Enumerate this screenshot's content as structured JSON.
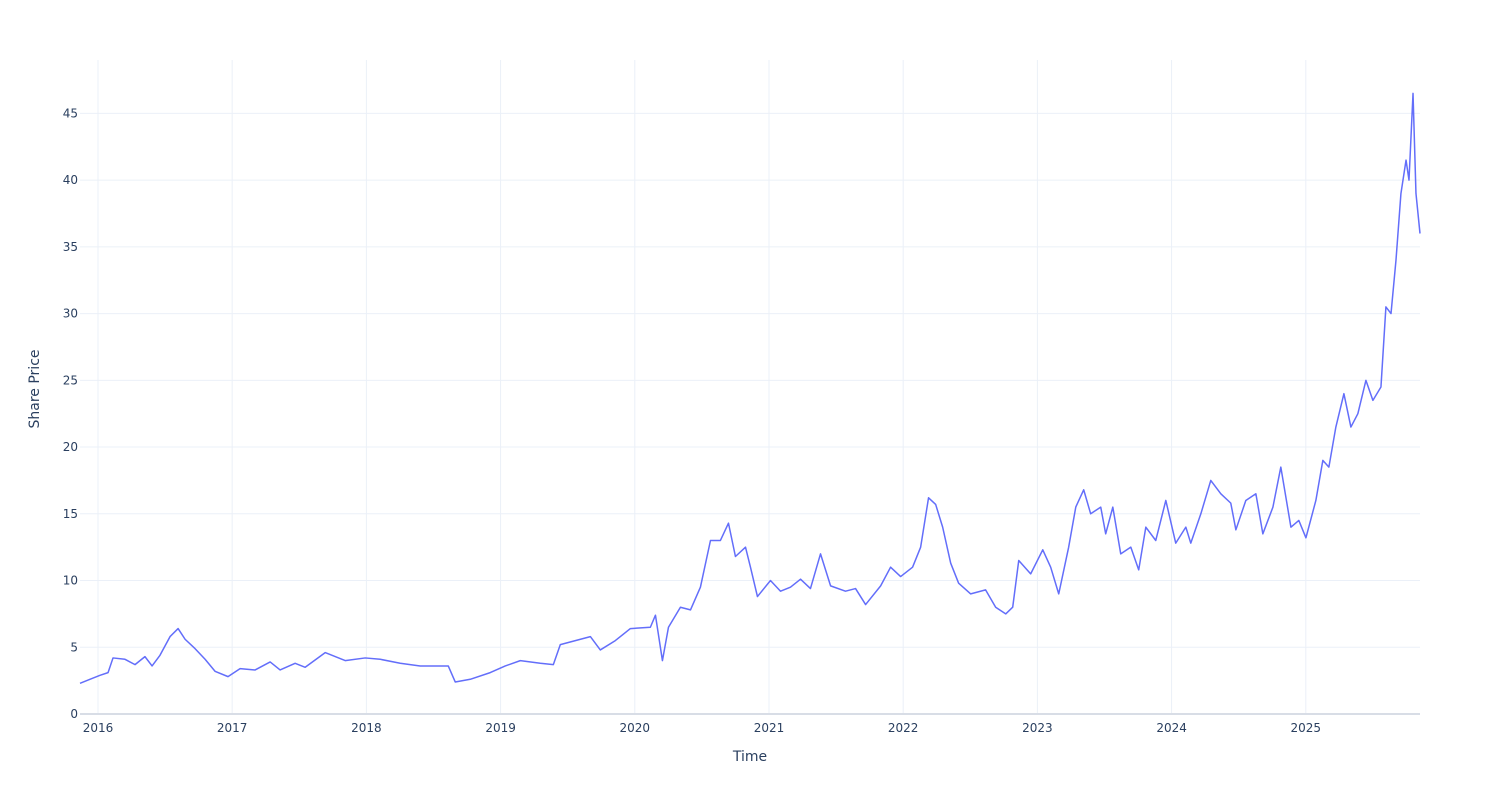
{
  "chart_data": {
    "type": "line",
    "x_label": "Time",
    "y_label": "Share Price",
    "xlim": [
      2015.866,
      2025.851
    ],
    "xticks": [
      2016,
      2017,
      2018,
      2019,
      2020,
      2021,
      2022,
      2023,
      2024,
      2025
    ],
    "ylim": [
      0,
      49
    ],
    "yticks": [
      0,
      5,
      10,
      15,
      20,
      25,
      30,
      35,
      40,
      45
    ],
    "grid": true,
    "series": [
      {
        "color": "#636efa",
        "x": [
          2015.866,
          2015.94,
          2016.015,
          2016.075,
          2016.112,
          2016.201,
          2016.276,
          2016.35,
          2016.403,
          2016.462,
          2016.537,
          2016.597,
          2016.649,
          2016.723,
          2016.798,
          2016.872,
          2016.969,
          2017.059,
          2017.171,
          2017.283,
          2017.357,
          2017.469,
          2017.544,
          2017.693,
          2017.842,
          2017.991,
          2018.103,
          2018.252,
          2018.401,
          2018.61,
          2018.662,
          2018.774,
          2018.923,
          2019.035,
          2019.147,
          2019.296,
          2019.393,
          2019.445,
          2019.557,
          2019.669,
          2019.743,
          2019.855,
          2019.967,
          2020.116,
          2020.154,
          2020.206,
          2020.251,
          2020.34,
          2020.415,
          2020.489,
          2020.564,
          2020.638,
          2020.698,
          2020.75,
          2020.825,
          2020.862,
          2020.914,
          2021.011,
          2021.086,
          2021.16,
          2021.235,
          2021.309,
          2021.384,
          2021.459,
          2021.57,
          2021.645,
          2021.72,
          2021.832,
          2021.906,
          2021.981,
          2022.07,
          2022.13,
          2022.189,
          2022.242,
          2022.294,
          2022.354,
          2022.413,
          2022.503,
          2022.614,
          2022.689,
          2022.764,
          2022.816,
          2022.861,
          2022.95,
          2023.04,
          2023.099,
          2023.159,
          2023.233,
          2023.286,
          2023.345,
          2023.397,
          2023.472,
          2023.509,
          2023.562,
          2023.621,
          2023.696,
          2023.755,
          2023.808,
          2023.882,
          2023.957,
          2024.031,
          2024.106,
          2024.143,
          2024.218,
          2024.292,
          2024.367,
          2024.441,
          2024.479,
          2024.553,
          2024.628,
          2024.68,
          2024.755,
          2024.814,
          2024.889,
          2024.948,
          2025.001,
          2025.075,
          2025.127,
          2025.172,
          2025.224,
          2025.284,
          2025.336,
          2025.388,
          2025.448,
          2025.5,
          2025.56,
          2025.597,
          2025.635,
          2025.672,
          2025.709,
          2025.747,
          2025.769,
          2025.799,
          2025.821,
          2025.851
        ],
        "values": [
          2.3,
          2.6,
          2.9,
          3.1,
          4.2,
          4.1,
          3.7,
          4.3,
          3.6,
          4.4,
          5.8,
          6.4,
          5.6,
          4.9,
          4.1,
          3.2,
          2.8,
          3.4,
          3.3,
          3.9,
          3.3,
          3.8,
          3.5,
          4.6,
          4.0,
          4.2,
          4.1,
          3.8,
          3.6,
          3.6,
          2.4,
          2.6,
          3.1,
          3.6,
          4.0,
          3.8,
          3.7,
          5.2,
          5.5,
          5.8,
          4.8,
          5.5,
          6.4,
          6.5,
          7.4,
          4.0,
          6.5,
          8.0,
          7.8,
          9.5,
          13.0,
          13.0,
          14.3,
          11.8,
          12.5,
          11.0,
          8.8,
          10.0,
          9.2,
          9.5,
          10.1,
          9.4,
          12.0,
          9.6,
          9.2,
          9.4,
          8.2,
          9.6,
          11.0,
          10.3,
          11.0,
          12.5,
          16.2,
          15.7,
          14.0,
          11.3,
          9.8,
          9.0,
          9.3,
          8.0,
          7.5,
          8.0,
          11.5,
          10.5,
          12.3,
          11.0,
          9.0,
          12.5,
          15.5,
          16.8,
          15.0,
          15.5,
          13.5,
          15.5,
          12.0,
          12.5,
          10.8,
          14.0,
          13.0,
          16.0,
          12.8,
          14.0,
          12.8,
          15.0,
          17.5,
          16.5,
          15.8,
          13.8,
          16.0,
          16.5,
          13.5,
          15.5,
          18.5,
          14.0,
          14.5,
          13.2,
          16.0,
          19.0,
          18.5,
          21.5,
          24.0,
          21.5,
          22.5,
          25.0,
          23.5,
          24.5,
          30.5,
          30.0,
          34.0,
          39.0,
          41.5,
          40.0,
          46.5,
          39.0,
          36.0
        ]
      }
    ]
  }
}
